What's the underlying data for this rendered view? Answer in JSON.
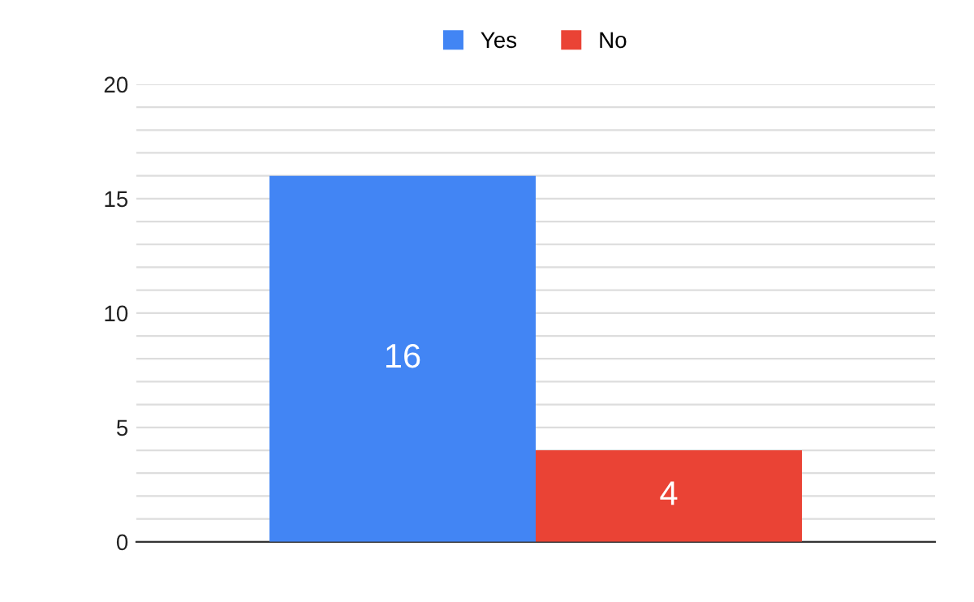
{
  "chart_data": {
    "type": "bar",
    "categories": [
      null
    ],
    "series": [
      {
        "name": "Yes",
        "color": "#4285f4",
        "values": [
          16
        ]
      },
      {
        "name": "No",
        "color": "#ea4335",
        "values": [
          4
        ]
      }
    ],
    "ylim": [
      0,
      20
    ],
    "yticks": [
      0,
      {
        "value": 1,
        "label": null
      },
      {
        "value": 2,
        "label": null
      },
      {
        "value": 3,
        "label": null
      },
      {
        "value": 4,
        "label": null
      },
      5,
      {
        "value": 6,
        "label": null
      },
      {
        "value": 7,
        "label": null
      },
      {
        "value": 8,
        "label": null
      },
      {
        "value": 9,
        "label": null
      },
      10,
      {
        "value": 11,
        "label": null
      },
      {
        "value": 12,
        "label": null
      },
      {
        "value": 13,
        "label": null
      },
      {
        "value": 14,
        "label": null
      },
      15,
      {
        "value": 16,
        "label": null
      },
      {
        "value": 17,
        "label": null
      },
      {
        "value": 18,
        "label": null
      },
      {
        "value": 19,
        "label": null
      },
      20
    ],
    "grid": "y",
    "legend": "top",
    "data_labels": true
  }
}
